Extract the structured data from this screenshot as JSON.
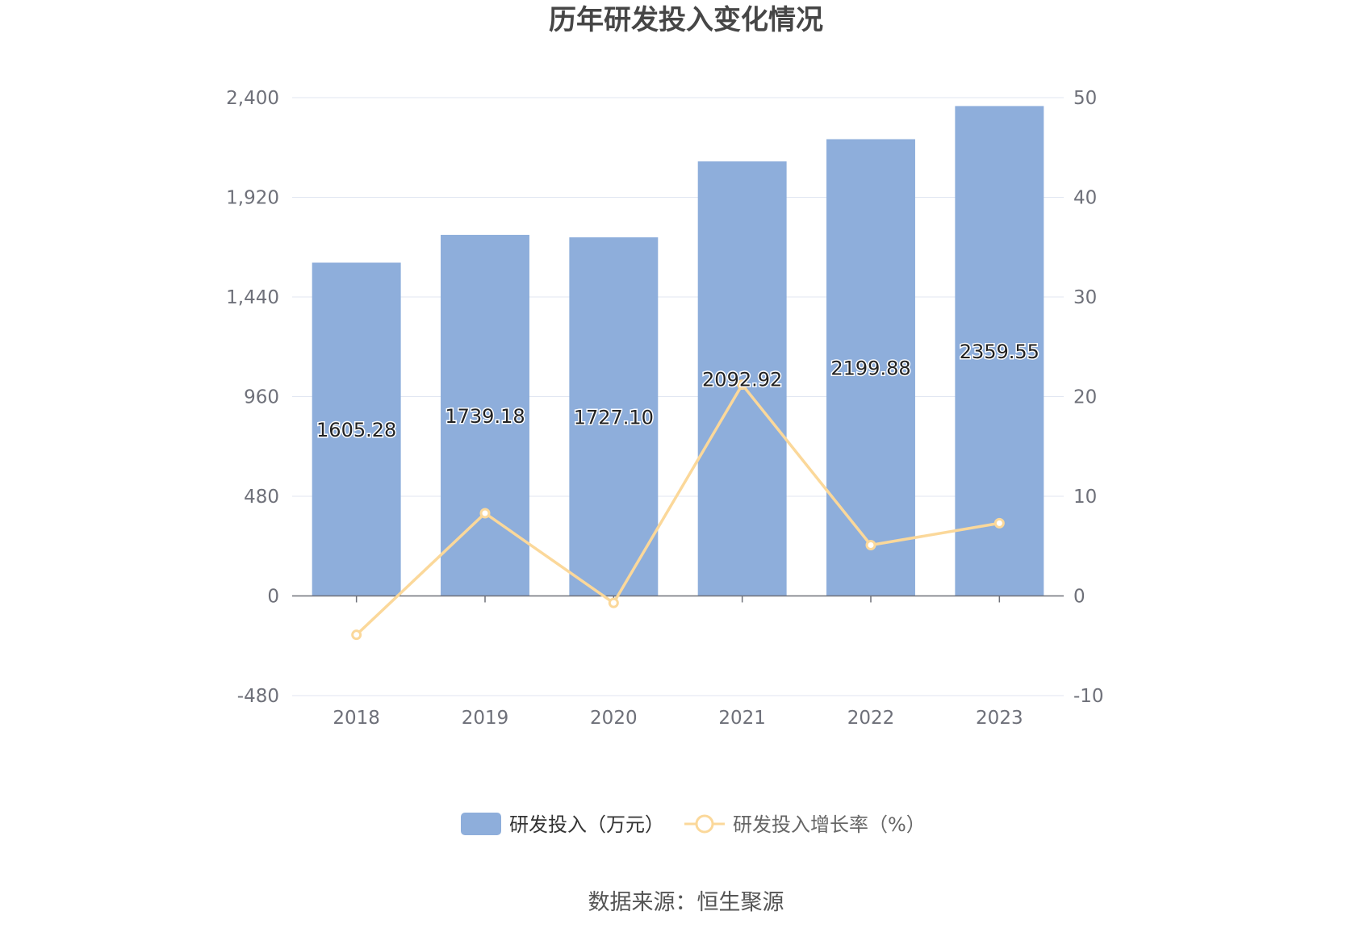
{
  "chart_data": {
    "type": "bar",
    "title": "历年研发投入变化情况",
    "categories": [
      "2018",
      "2019",
      "2020",
      "2021",
      "2022",
      "2023"
    ],
    "series": [
      {
        "name": "研发投入（万元）",
        "type": "bar",
        "axis": "left",
        "values": [
          1605.28,
          1739.18,
          1727.1,
          2092.92,
          2199.88,
          2359.55
        ],
        "labels": [
          "1605.28",
          "1739.18",
          "1727.10",
          "2092.92",
          "2199.88",
          "2359.55"
        ],
        "color": "#8eaedb"
      },
      {
        "name": "研发投入增长率（%）",
        "type": "line",
        "axis": "right",
        "values": [
          -3.9,
          8.3,
          -0.7,
          21.2,
          5.1,
          7.3
        ],
        "color": "#fbd89a"
      }
    ],
    "y_left": {
      "ticks": [
        "2,400",
        "1,920",
        "1,440",
        "960",
        "480",
        "0",
        "-480"
      ],
      "min": -480,
      "max": 2400
    },
    "y_right": {
      "ticks": [
        "50",
        "40",
        "30",
        "20",
        "10",
        "0",
        "-10"
      ],
      "min": -10,
      "max": 50
    },
    "grid": true,
    "legend": "bottom-center",
    "source": "数据来源：恒生聚源"
  }
}
